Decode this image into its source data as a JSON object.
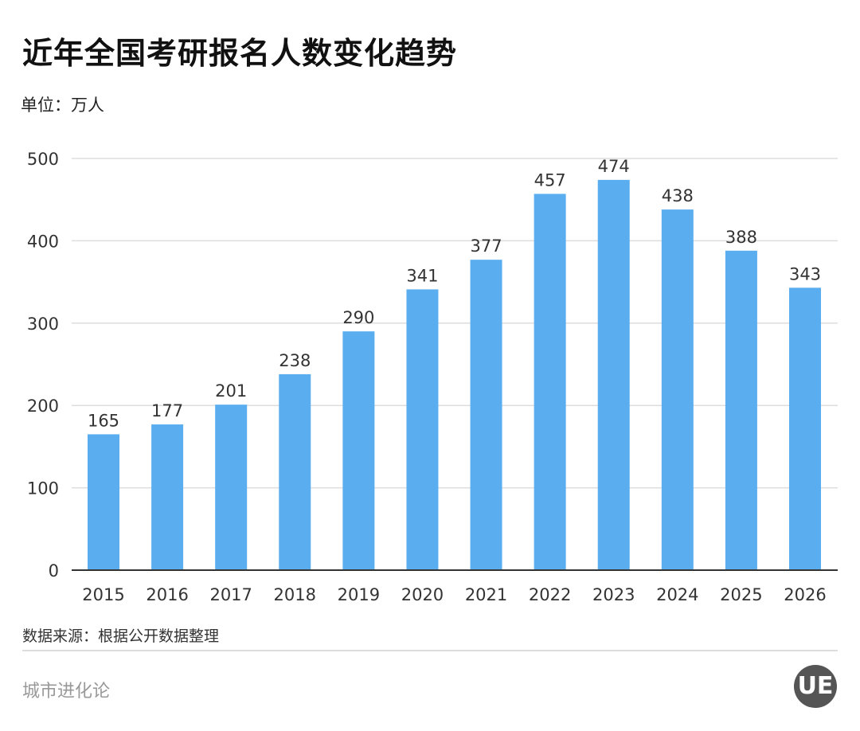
{
  "title": "近年全国考研报名人数变化趋势",
  "unit": "单位：万人",
  "source": "数据来源：根据公开数据整理",
  "brand": "城市进化论",
  "logo_text": "UE",
  "colors": {
    "bar": "#5aaef0",
    "grid": "#dddddd",
    "axis": "#333333"
  },
  "chart_data": {
    "type": "bar",
    "title": "近年全国考研报名人数变化趋势",
    "ylabel": "单位：万人",
    "xlabel": "",
    "categories": [
      "2015",
      "2016",
      "2017",
      "2018",
      "2019",
      "2020",
      "2021",
      "2022",
      "2023",
      "2024",
      "2025",
      "2026"
    ],
    "values": [
      165,
      177,
      201,
      238,
      290,
      341,
      377,
      457,
      474,
      438,
      388,
      343
    ],
    "ylim": [
      0,
      500
    ],
    "yticks": [
      0,
      100,
      200,
      300,
      400,
      500
    ],
    "grid": true
  }
}
